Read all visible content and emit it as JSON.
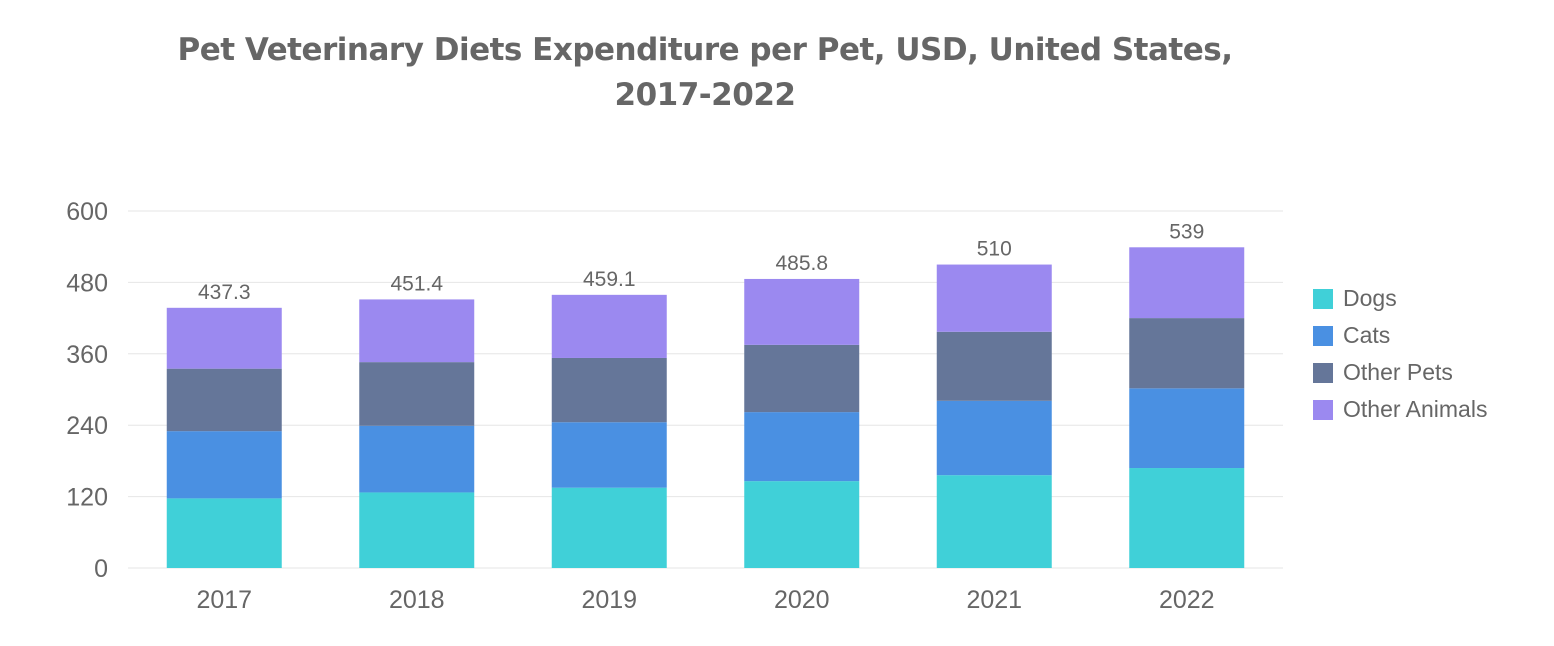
{
  "chart_data": {
    "type": "bar",
    "stacked": true,
    "title": "Pet Veterinary Diets Expenditure per Pet, USD, United States, 2017-2022",
    "title_lines": [
      "Pet Veterinary Diets Expenditure per Pet, USD, United States,",
      "2017-2022"
    ],
    "xlabel": "",
    "ylabel": "",
    "ylim": [
      0,
      600
    ],
    "yticks": [
      0,
      120,
      240,
      360,
      480,
      600
    ],
    "grid": true,
    "legend_position": "right",
    "categories": [
      "2017",
      "2018",
      "2019",
      "2020",
      "2021",
      "2022"
    ],
    "series": [
      {
        "name": "Dogs",
        "color": "#40D0D8",
        "values": [
          117,
          127,
          135,
          146,
          156,
          168
        ]
      },
      {
        "name": "Cats",
        "color": "#4A90E2",
        "values": [
          113,
          112,
          110,
          116,
          125,
          134
        ]
      },
      {
        "name": "Other Pets",
        "color": "#657699",
        "values": [
          105,
          107,
          108,
          113,
          116,
          118
        ]
      },
      {
        "name": "Other Animals",
        "color": "#9B89F0",
        "values": [
          102.3,
          105.4,
          106.1,
          110.8,
          113,
          119
        ]
      }
    ],
    "totals": [
      437.3,
      451.4,
      459.1,
      485.8,
      510,
      539
    ],
    "total_labels": [
      "437.3",
      "451.4",
      "459.1",
      "485.8",
      "510",
      "539"
    ]
  }
}
